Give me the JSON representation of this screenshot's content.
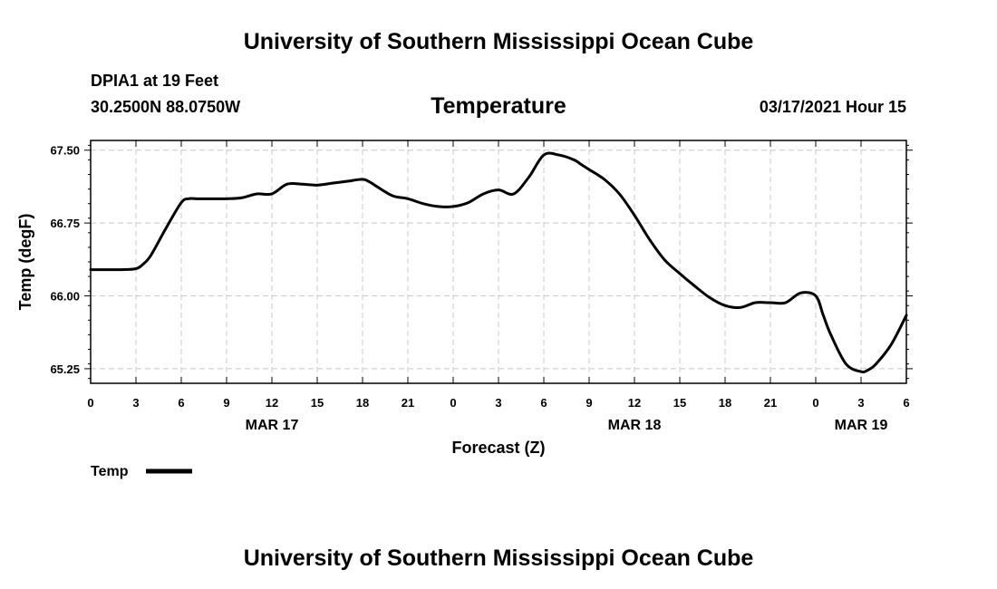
{
  "header": {
    "title": "University of Southern Mississippi Ocean Cube",
    "station": "DPIA1 at 19 Feet",
    "coords": "30.2500N 88.0750W",
    "datetime": "03/17/2021 Hour 15"
  },
  "footer": {
    "title": "University of Southern Mississippi Ocean Cube"
  },
  "colors": {
    "line": "#000000",
    "grid": "#c8c8c8",
    "background": "#ffffff"
  },
  "chart_data": {
    "type": "line",
    "title": "Temperature",
    "xlabel": "Forecast (Z)",
    "ylabel": "Temp (degF)",
    "xlim": [
      0,
      54
    ],
    "ylim": [
      65.1,
      67.6
    ],
    "ytick_values": [
      65.25,
      66.0,
      66.75,
      67.5
    ],
    "ytick_labels": [
      "65.25",
      "66.00",
      "66.75",
      "67.50"
    ],
    "xtick_labels": [
      "0",
      "3",
      "6",
      "9",
      "12",
      "15",
      "18",
      "21",
      "0",
      "3",
      "6",
      "9",
      "12",
      "15",
      "18",
      "21",
      "0",
      "3",
      "6"
    ],
    "date_labels": [
      {
        "label": "MAR 17",
        "hour": 12
      },
      {
        "label": "MAR 18",
        "hour": 36
      },
      {
        "label": "MAR 19",
        "hour": 51
      }
    ],
    "grid": true,
    "series": [
      {
        "name": "Temp",
        "x": [
          0,
          1,
          2,
          3,
          3.5,
          4,
          5,
          6,
          6.5,
          7,
          8,
          9,
          10,
          11,
          12,
          13,
          14,
          15,
          16,
          17,
          18,
          18.5,
          19,
          20,
          21,
          22,
          23,
          24,
          25,
          26,
          27,
          28,
          29,
          30,
          31,
          32,
          32.5,
          33,
          34,
          35,
          36,
          37,
          38,
          39,
          40,
          41,
          42,
          43,
          44,
          45,
          46,
          47,
          48,
          48.5,
          49,
          50,
          51,
          51.5,
          52,
          53,
          54
        ],
        "y": [
          66.27,
          66.27,
          66.27,
          66.28,
          66.33,
          66.42,
          66.7,
          66.96,
          67.0,
          67.0,
          67.0,
          67.0,
          67.01,
          67.05,
          67.05,
          67.15,
          67.15,
          67.14,
          67.16,
          67.18,
          67.2,
          67.17,
          67.12,
          67.03,
          67.0,
          66.95,
          66.92,
          66.92,
          66.96,
          67.05,
          67.09,
          67.05,
          67.22,
          67.45,
          67.45,
          67.4,
          67.35,
          67.3,
          67.2,
          67.05,
          66.83,
          66.58,
          66.37,
          66.23,
          66.1,
          65.98,
          65.9,
          65.88,
          65.93,
          65.93,
          65.93,
          66.03,
          66.0,
          65.8,
          65.6,
          65.3,
          65.22,
          65.24,
          65.3,
          65.5,
          65.8
        ]
      }
    ],
    "legend": [
      {
        "label": "Temp",
        "placement": "bottom-left"
      }
    ]
  }
}
